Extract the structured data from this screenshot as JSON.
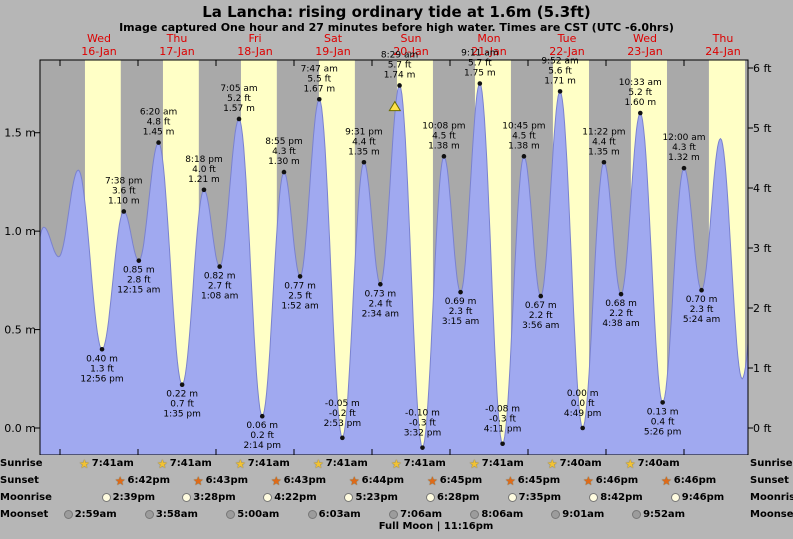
{
  "chart_data": {
    "type": "area",
    "title": "La Lancha: rising ordinary tide at 1.6m (5.3ft)",
    "subtitle": "Image captured One hour and 27 minutes before high water. Times are CST (UTC -6.0hrs)",
    "full_moon": "Full Moon | 11:16pm",
    "y_range_m": [
      -0.14,
      1.87
    ],
    "days": [
      {
        "name": "Wed",
        "date": "16-Jan"
      },
      {
        "name": "Thu",
        "date": "17-Jan"
      },
      {
        "name": "Fri",
        "date": "18-Jan"
      },
      {
        "name": "Sat",
        "date": "19-Jan"
      },
      {
        "name": "Sun",
        "date": "20-Jan"
      },
      {
        "name": "Mon",
        "date": "21-Jan"
      },
      {
        "name": "Tue",
        "date": "22-Jan"
      },
      {
        "name": "Wed",
        "date": "23-Jan"
      },
      {
        "name": "Thu",
        "date": "24-Jan"
      }
    ],
    "y_left": [
      {
        "label": "1.5 m",
        "m": 1.5
      },
      {
        "label": "1.0 m",
        "m": 1.0
      },
      {
        "label": "0.5 m",
        "m": 0.5
      },
      {
        "label": "0.0 m",
        "m": 0.0
      }
    ],
    "y_right": [
      {
        "label": "6 ft",
        "ft": 6
      },
      {
        "label": "5 ft",
        "ft": 5
      },
      {
        "label": "4 ft",
        "ft": 4
      },
      {
        "label": "3 ft",
        "ft": 3
      },
      {
        "label": "2 ft",
        "ft": 2
      },
      {
        "label": "1 ft",
        "ft": 1
      },
      {
        "label": "0 ft",
        "ft": 0
      }
    ],
    "tide_points": [
      {
        "day": -1,
        "hour": 12.5,
        "m": 0.35,
        "kind": "shape"
      },
      {
        "day": -1,
        "hour": 19.0,
        "m": 1.02,
        "kind": "shape"
      },
      {
        "day": -1,
        "hour": 23.6,
        "m": 0.87,
        "kind": "shape"
      },
      {
        "day": 0,
        "hour": 5.63,
        "m": 1.31,
        "kind": "shape"
      },
      {
        "day": 0,
        "hour": 12.93,
        "m": 0.4,
        "kind": "low",
        "lines": [
          "0.40 m",
          "1.3 ft",
          "12:56 pm"
        ]
      },
      {
        "day": 0,
        "hour": 19.63,
        "m": 1.1,
        "kind": "high",
        "lines": [
          "7:38 pm",
          "3.6 ft",
          "1.10 m"
        ]
      },
      {
        "day": 1,
        "hour": 0.25,
        "m": 0.85,
        "kind": "low",
        "lines": [
          "0.85 m",
          "2.8 ft",
          "12:15 am"
        ]
      },
      {
        "day": 1,
        "hour": 6.33,
        "m": 1.45,
        "kind": "high",
        "lines": [
          "6:20 am",
          "4.8 ft",
          "1.45 m"
        ]
      },
      {
        "day": 1,
        "hour": 13.58,
        "m": 0.22,
        "kind": "low",
        "lines": [
          "0.22 m",
          "0.7 ft",
          "1:35 pm"
        ]
      },
      {
        "day": 1,
        "hour": 20.3,
        "m": 1.21,
        "kind": "high",
        "lines": [
          "8:18 pm",
          "4.0 ft",
          "1.21 m"
        ]
      },
      {
        "day": 2,
        "hour": 1.13,
        "m": 0.82,
        "kind": "low",
        "lines": [
          "0.82 m",
          "2.7 ft",
          "1:08 am"
        ]
      },
      {
        "day": 2,
        "hour": 7.08,
        "m": 1.57,
        "kind": "high",
        "lines": [
          "7:05 am",
          "5.2 ft",
          "1.57 m"
        ]
      },
      {
        "day": 2,
        "hour": 14.23,
        "m": 0.06,
        "kind": "low",
        "lines": [
          "0.06 m",
          "0.2 ft",
          "2:14 pm"
        ]
      },
      {
        "day": 2,
        "hour": 20.92,
        "m": 1.3,
        "kind": "high",
        "lines": [
          "8:55 pm",
          "4.3 ft",
          "1.30 m"
        ]
      },
      {
        "day": 3,
        "hour": 1.87,
        "m": 0.77,
        "kind": "low",
        "lines": [
          "0.77 m",
          "2.5 ft",
          "1:52 am"
        ]
      },
      {
        "day": 3,
        "hour": 7.78,
        "m": 1.67,
        "kind": "high",
        "lines": [
          "7:47 am",
          "5.5 ft",
          "1.67 m"
        ]
      },
      {
        "day": 3,
        "hour": 14.88,
        "m": -0.05,
        "kind": "low",
        "lines": [
          "-0.05 m",
          "-0.2 ft",
          "2:53 pm"
        ]
      },
      {
        "day": 3,
        "hour": 21.52,
        "m": 1.35,
        "kind": "high",
        "lines": [
          "9:31 pm",
          "4.4 ft",
          "1.35 m"
        ]
      },
      {
        "day": 4,
        "hour": 2.57,
        "m": 0.73,
        "kind": "low",
        "lines": [
          "0.73 m",
          "2.4 ft",
          "2:34 am"
        ]
      },
      {
        "day": 4,
        "hour": 8.48,
        "m": 1.74,
        "kind": "high",
        "lines": [
          "8:29 am",
          "5.7 ft",
          "1.74 m"
        ]
      },
      {
        "day": 4,
        "hour": 15.53,
        "m": -0.1,
        "kind": "low",
        "lines": [
          "-0.10 m",
          "-0.3 ft",
          "3:32 pm"
        ]
      },
      {
        "day": 4,
        "hour": 22.13,
        "m": 1.38,
        "kind": "high",
        "lines": [
          "10:08 pm",
          "4.5 ft",
          "1.38 m"
        ]
      },
      {
        "day": 5,
        "hour": 3.25,
        "m": 0.69,
        "kind": "low",
        "lines": [
          "0.69 m",
          "2.3 ft",
          "3:15 am"
        ]
      },
      {
        "day": 5,
        "hour": 9.18,
        "m": 1.75,
        "kind": "high",
        "lines": [
          "9:11 am",
          "5.7 ft",
          "1.75 m"
        ]
      },
      {
        "day": 5,
        "hour": 16.18,
        "m": -0.08,
        "kind": "low",
        "lines": [
          "-0.08 m",
          "-0.3 ft",
          "4:11 pm"
        ]
      },
      {
        "day": 5,
        "hour": 22.75,
        "m": 1.38,
        "kind": "high",
        "lines": [
          "10:45 pm",
          "4.5 ft",
          "1.38 m"
        ]
      },
      {
        "day": 6,
        "hour": 3.93,
        "m": 0.67,
        "kind": "low",
        "lines": [
          "0.67 m",
          "2.2 ft",
          "3:56 am"
        ]
      },
      {
        "day": 6,
        "hour": 9.87,
        "m": 1.71,
        "kind": "high",
        "lines": [
          "9:52 am",
          "5.6 ft",
          "1.71 m"
        ]
      },
      {
        "day": 6,
        "hour": 16.82,
        "m": 0.0,
        "kind": "low",
        "lines": [
          "0.00 m",
          "0.0 ft",
          "4:49 pm"
        ]
      },
      {
        "day": 6,
        "hour": 23.37,
        "m": 1.35,
        "kind": "high",
        "lines": [
          "11:22 pm",
          "4.4 ft",
          "1.35 m"
        ]
      },
      {
        "day": 7,
        "hour": 4.63,
        "m": 0.68,
        "kind": "low",
        "lines": [
          "0.68 m",
          "2.2 ft",
          "4:38 am"
        ]
      },
      {
        "day": 7,
        "hour": 10.55,
        "m": 1.6,
        "kind": "high",
        "lines": [
          "10:33 am",
          "5.2 ft",
          "1.60 m"
        ]
      },
      {
        "day": 7,
        "hour": 17.43,
        "m": 0.13,
        "kind": "low",
        "lines": [
          "0.13 m",
          "0.4 ft",
          "5:26 pm"
        ]
      },
      {
        "day": 8,
        "hour": 0.0,
        "m": 1.32,
        "kind": "high",
        "lines": [
          "12:00 am",
          "4.3 ft",
          "1.32 m"
        ]
      },
      {
        "day": 8,
        "hour": 5.4,
        "m": 0.7,
        "kind": "low",
        "lines": [
          "0.70 m",
          "2.3 ft",
          "5:24 am"
        ]
      },
      {
        "day": 8,
        "hour": 11.22,
        "m": 1.47,
        "kind": "shape"
      },
      {
        "day": 8,
        "hour": 17.9,
        "m": 0.25,
        "kind": "shape"
      },
      {
        "day": 9,
        "hour": 0.5,
        "m": 1.3,
        "kind": "shape"
      }
    ],
    "now_marker": {
      "day": 4,
      "hour": 7.03
    },
    "astro_rows": [
      {
        "label": "Sunrise",
        "icon": "sunrise-star-icon",
        "style": "star",
        "color": "#f2c232",
        "entries": [
          {
            "day": 0,
            "time": "7:41am"
          },
          {
            "day": 1,
            "time": "7:41am"
          },
          {
            "day": 2,
            "time": "7:41am"
          },
          {
            "day": 3,
            "time": "7:41am"
          },
          {
            "day": 4,
            "time": "7:41am"
          },
          {
            "day": 5,
            "time": "7:41am"
          },
          {
            "day": 6,
            "time": "7:40am"
          },
          {
            "day": 7,
            "time": "7:40am"
          }
        ]
      },
      {
        "label": "Sunset",
        "icon": "sunset-star-icon",
        "style": "star",
        "color": "#e06a18",
        "entries": [
          {
            "day": 0,
            "time": "6:42pm"
          },
          {
            "day": 1,
            "time": "6:43pm"
          },
          {
            "day": 2,
            "time": "6:43pm"
          },
          {
            "day": 3,
            "time": "6:44pm"
          },
          {
            "day": 4,
            "time": "6:45pm"
          },
          {
            "day": 5,
            "time": "6:45pm"
          },
          {
            "day": 6,
            "time": "6:46pm"
          },
          {
            "day": 7,
            "time": "6:46pm"
          }
        ]
      },
      {
        "label": "Moonrise",
        "icon": "moonrise-circle-icon",
        "style": "circle",
        "color": "#fffce0",
        "entries": [
          {
            "day": 0,
            "time": "2:39pm"
          },
          {
            "day": 1,
            "time": "3:28pm"
          },
          {
            "day": 2,
            "time": "4:22pm"
          },
          {
            "day": 3,
            "time": "5:23pm"
          },
          {
            "day": 4,
            "time": "6:28pm"
          },
          {
            "day": 5,
            "time": "7:35pm"
          },
          {
            "day": 6,
            "time": "8:42pm"
          },
          {
            "day": 7,
            "time": "9:46pm"
          }
        ]
      },
      {
        "label": "Moonset",
        "icon": "moonset-circle-icon",
        "style": "circle",
        "color": "#9c9c9c",
        "entries": [
          {
            "day": 0,
            "time": "2:59am"
          },
          {
            "day": 1,
            "time": "3:58am"
          },
          {
            "day": 2,
            "time": "5:00am"
          },
          {
            "day": 3,
            "time": "6:03am"
          },
          {
            "day": 4,
            "time": "7:06am"
          },
          {
            "day": 5,
            "time": "8:06am"
          },
          {
            "day": 6,
            "time": "9:01am"
          },
          {
            "day": 7,
            "time": "9:52am"
          }
        ]
      }
    ],
    "colors": {
      "background": "#b6b6b6",
      "night_band": "#a9a9a9",
      "day_band": "#ffffc6",
      "tide_fill": "#a0a9f0",
      "tide_stroke": "#7a82cf",
      "day_label": "#dd0000",
      "annotation": "#000000",
      "now_marker": "#ffe24a"
    }
  }
}
